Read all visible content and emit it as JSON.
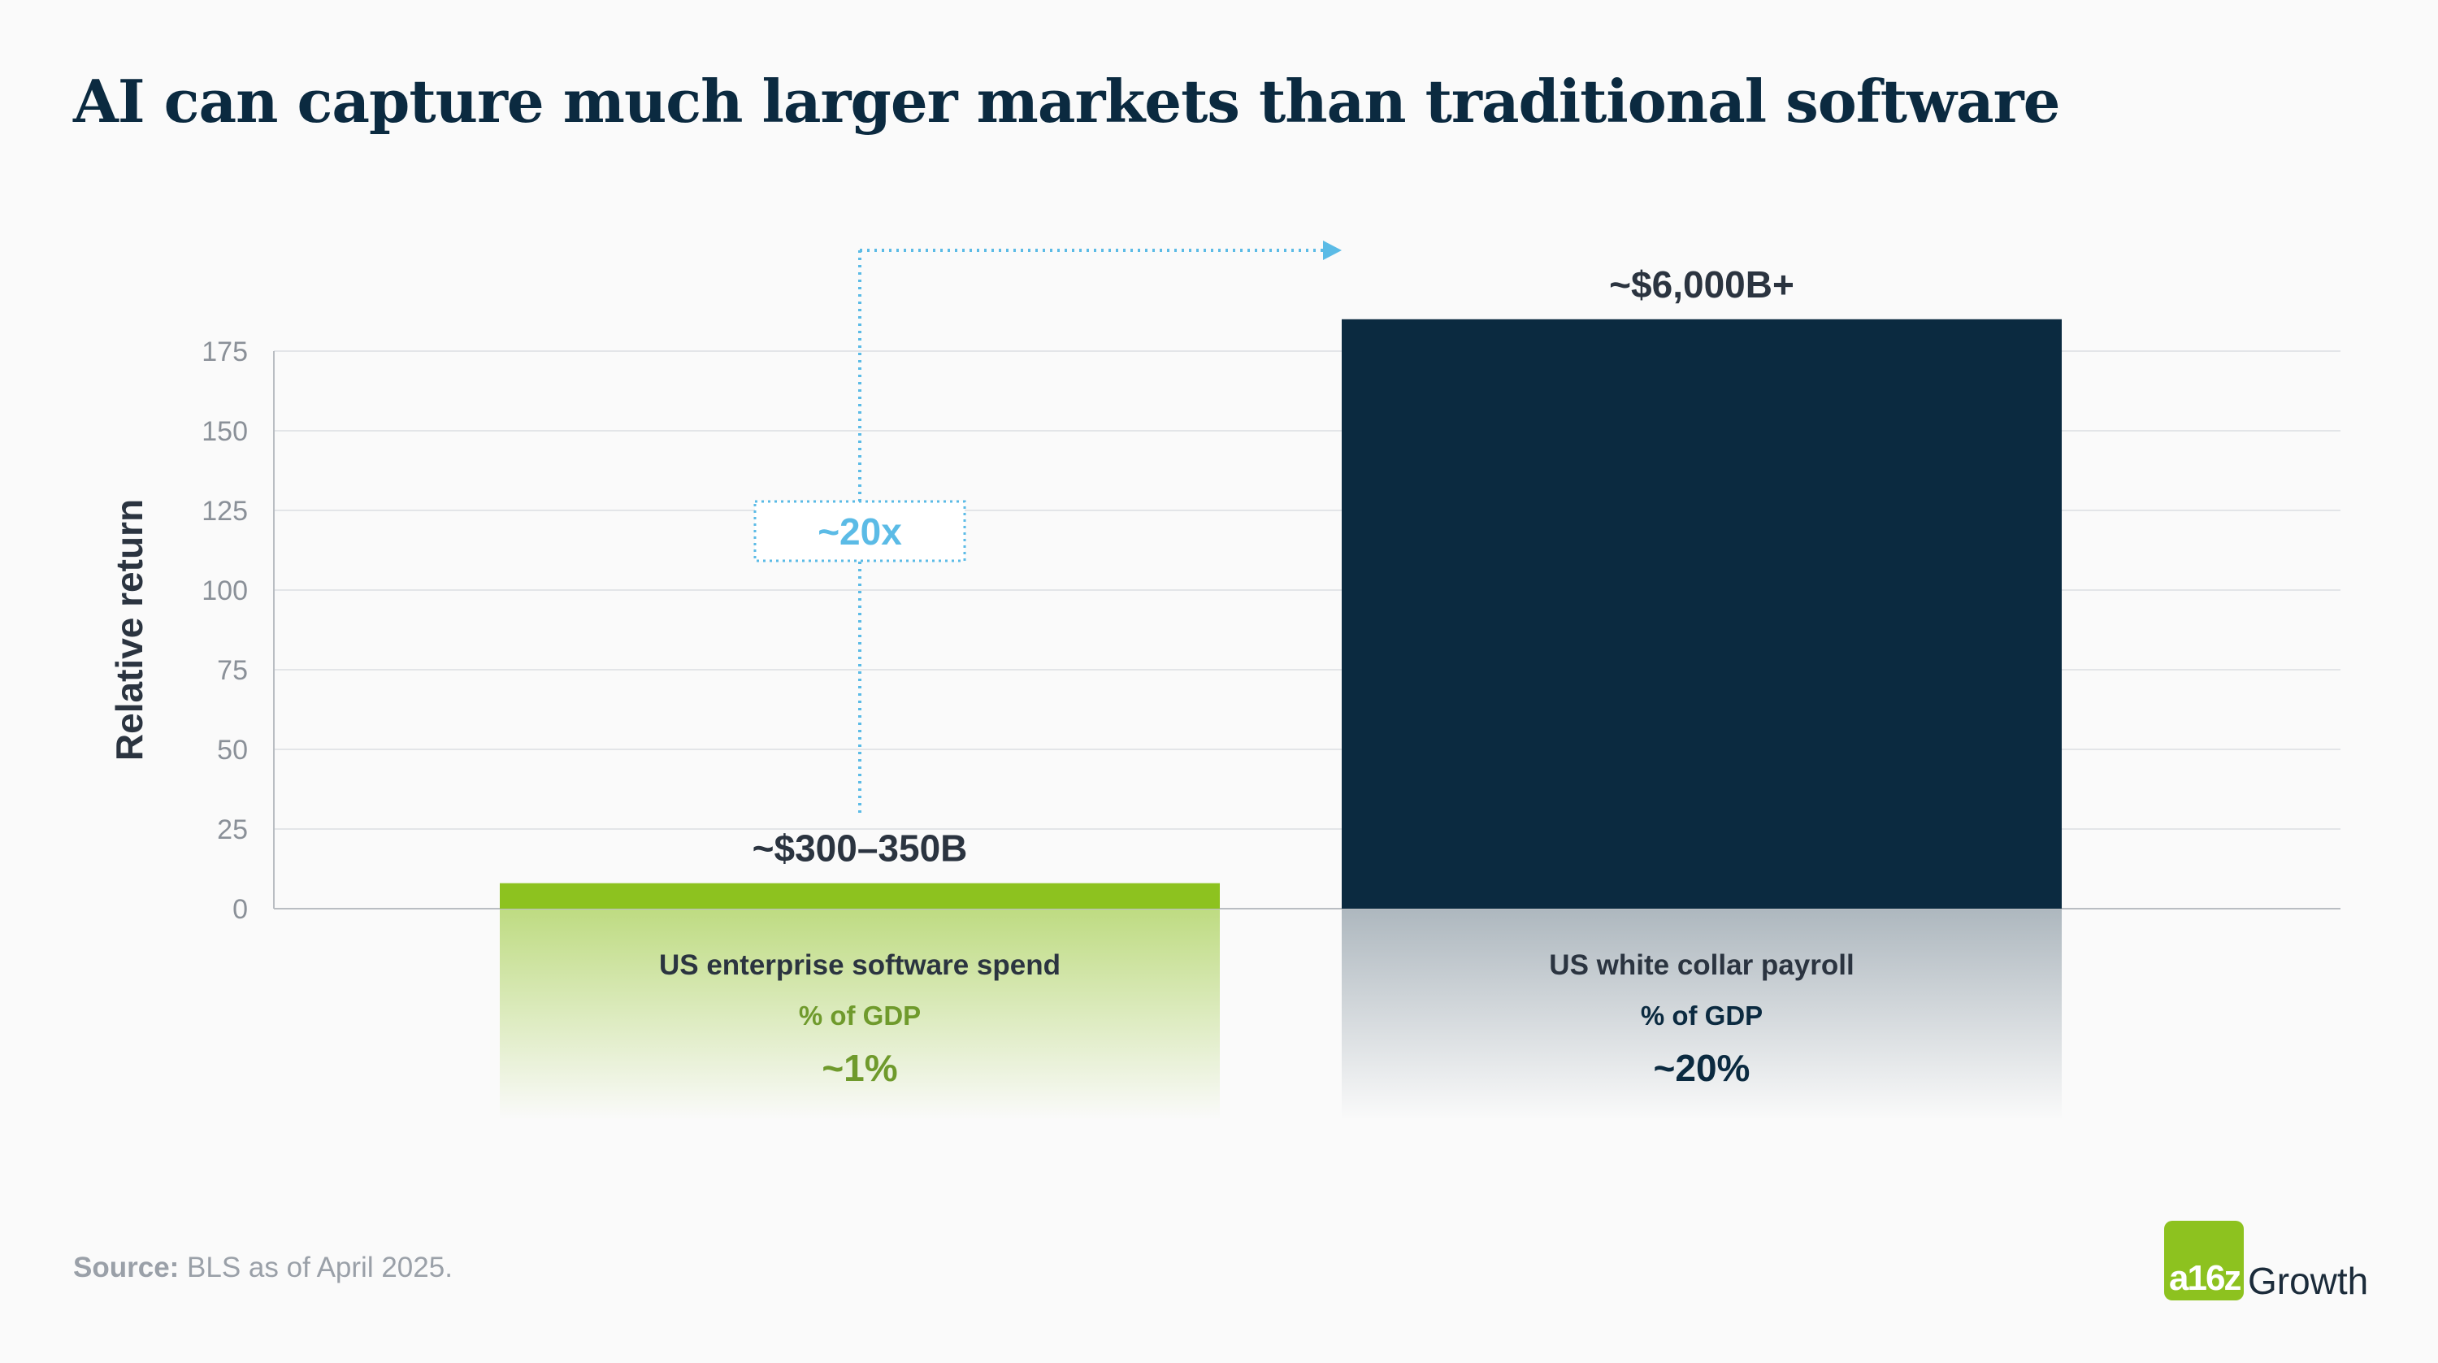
{
  "title": "AI can capture much larger markets than traditional software",
  "source": {
    "label": "Source:",
    "text": " BLS as of April 2025."
  },
  "logo": {
    "mark": "a16z",
    "text": "Growth"
  },
  "chart_data": {
    "type": "bar",
    "ylabel": "Relative return",
    "yticks": [
      0,
      25,
      50,
      75,
      100,
      125,
      150,
      175
    ],
    "ylim": [
      0,
      175
    ],
    "grid": true,
    "categories": [
      "US enterprise software spend",
      "US white collar payroll"
    ],
    "values": [
      8,
      185
    ],
    "value_labels": [
      "~$300–350B",
      "~$6,000B+"
    ],
    "gdp_label": "% of GDP",
    "gdp_values": [
      "~1%",
      "~20%"
    ],
    "colors": [
      "#8dc21f",
      "#0b2a40"
    ],
    "gdp_label_colors": [
      "#6f9a2c",
      "#0b2a40"
    ],
    "annotation": {
      "text": "~20x",
      "color": "#5bbbe6"
    }
  }
}
